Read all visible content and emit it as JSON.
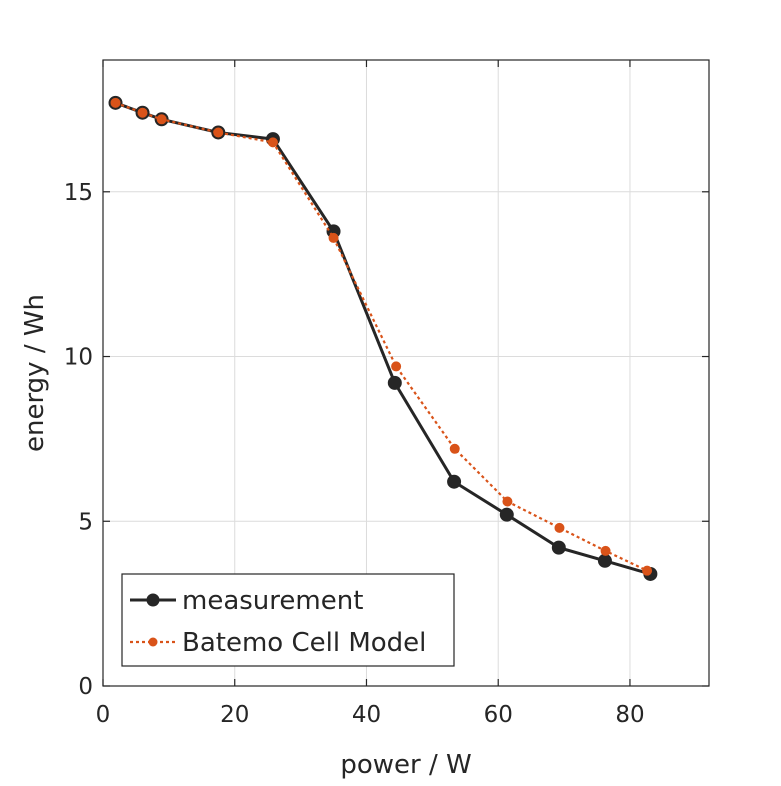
{
  "chart_data": {
    "type": "line",
    "xlabel": "power / W",
    "ylabel": "energy / Wh",
    "xlim": [
      0,
      92
    ],
    "ylim": [
      0,
      19
    ],
    "xticks": [
      0,
      20,
      40,
      60,
      80
    ],
    "yticks": [
      0,
      5,
      10,
      15
    ],
    "grid": true,
    "legend_position": "bottom-left",
    "series": [
      {
        "name": "measurement",
        "color": "#262626",
        "line_style": "solid",
        "marker": "circle",
        "x": [
          1.9,
          6.0,
          8.9,
          17.5,
          25.8,
          35.0,
          44.3,
          53.3,
          61.3,
          69.2,
          76.2,
          83.1
        ],
        "y": [
          17.7,
          17.4,
          17.2,
          16.8,
          16.6,
          13.8,
          9.2,
          6.2,
          5.2,
          4.2,
          3.8,
          3.4
        ]
      },
      {
        "name": "Batemo Cell Model",
        "color": "#d95319",
        "line_style": "dotted",
        "marker": "circle",
        "x": [
          1.9,
          6.0,
          8.9,
          17.5,
          25.8,
          35.0,
          44.5,
          53.4,
          61.4,
          69.3,
          76.3,
          82.6
        ],
        "y": [
          17.7,
          17.4,
          17.2,
          16.8,
          16.5,
          13.6,
          9.7,
          7.2,
          5.6,
          4.8,
          4.1,
          3.5
        ]
      }
    ]
  }
}
